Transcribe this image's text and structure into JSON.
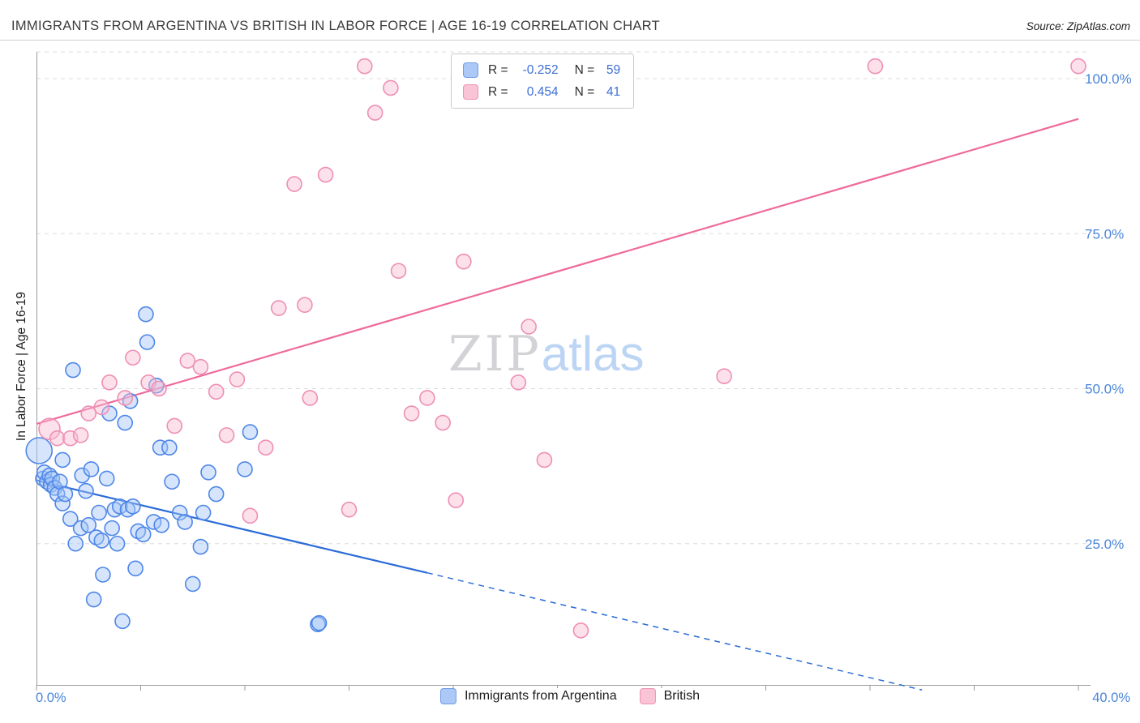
{
  "header": {
    "title": "IMMIGRANTS FROM ARGENTINA VS BRITISH IN LABOR FORCE | AGE 16-19 CORRELATION CHART",
    "source": "Source: ZipAtlas.com"
  },
  "watermark": {
    "zip": "ZIP",
    "atlas": "atlas"
  },
  "legend_box": {
    "series": [
      {
        "r_label": "R =",
        "r_value": "-0.252",
        "n_label": "N =",
        "n_value": "59"
      },
      {
        "r_label": "R =",
        "r_value": "0.454",
        "n_label": "N =",
        "n_value": "41"
      }
    ]
  },
  "axes": {
    "y_label": "In Labor Force | Age 16-19",
    "x_min_label": "0.0%",
    "x_max_label": "40.0%",
    "y_ticks": [
      "100.0%",
      "75.0%",
      "50.0%",
      "25.0%"
    ]
  },
  "bottom_legend": [
    {
      "label": "Immigrants from Argentina"
    },
    {
      "label": "British"
    }
  ],
  "colors": {
    "axis_blue": "#4a86d8",
    "grid": "#dcdcdc",
    "axis_line": "#9b9b9b",
    "argentina_fill": "#a4c6f7",
    "argentina_stroke": "#4e86e8",
    "british_fill": "#f9bcd2",
    "british_stroke": "#ee8fb4",
    "argentina_trend": "#2a6bd8",
    "british_trend": "#ef6a9b"
  },
  "chart_data": {
    "type": "scatter",
    "title": "IMMIGRANTS FROM ARGENTINA VS BRITISH IN LABOR FORCE | AGE 16-19 CORRELATION CHART",
    "xlabel": "",
    "ylabel": "In Labor Force | Age 16-19",
    "x_range": [
      0,
      40
    ],
    "y_ticks_pct": [
      100,
      75,
      50,
      25
    ],
    "grid": true,
    "legend_position": "bottom",
    "series": [
      {
        "name": "Immigrants from Argentina",
        "R": -0.252,
        "N": 59,
        "points": [
          [
            0.1,
            40,
            16
          ],
          [
            0.25,
            35.5
          ],
          [
            0.3,
            36.5
          ],
          [
            0.4,
            35
          ],
          [
            0.5,
            36
          ],
          [
            0.55,
            34.5
          ],
          [
            0.6,
            35.5
          ],
          [
            0.7,
            34
          ],
          [
            0.8,
            33
          ],
          [
            0.9,
            35
          ],
          [
            1.0,
            38.5
          ],
          [
            1.0,
            31.5
          ],
          [
            1.1,
            33
          ],
          [
            1.3,
            29
          ],
          [
            1.4,
            53
          ],
          [
            1.5,
            25
          ],
          [
            1.7,
            27.5
          ],
          [
            1.75,
            36
          ],
          [
            1.9,
            33.5
          ],
          [
            2.0,
            28
          ],
          [
            2.1,
            37
          ],
          [
            2.2,
            16
          ],
          [
            2.3,
            26
          ],
          [
            2.4,
            30
          ],
          [
            2.5,
            25.5
          ],
          [
            2.55,
            20
          ],
          [
            2.7,
            35.5
          ],
          [
            2.8,
            46
          ],
          [
            2.9,
            27.5
          ],
          [
            3.0,
            30.5
          ],
          [
            3.1,
            25
          ],
          [
            3.2,
            31
          ],
          [
            3.3,
            12.5
          ],
          [
            3.4,
            44.5
          ],
          [
            3.5,
            30.5
          ],
          [
            3.6,
            48
          ],
          [
            3.7,
            31
          ],
          [
            3.8,
            21
          ],
          [
            3.9,
            27
          ],
          [
            4.1,
            26.5
          ],
          [
            4.2,
            62
          ],
          [
            4.25,
            57.5
          ],
          [
            4.5,
            28.5
          ],
          [
            4.6,
            50.5
          ],
          [
            4.8,
            28
          ],
          [
            4.75,
            40.5
          ],
          [
            5.1,
            40.5
          ],
          [
            5.2,
            35
          ],
          [
            5.5,
            30
          ],
          [
            5.7,
            28.5
          ],
          [
            6.0,
            18.5
          ],
          [
            6.3,
            24.5
          ],
          [
            6.4,
            30
          ],
          [
            6.6,
            36.5
          ],
          [
            6.9,
            33
          ],
          [
            8.0,
            37
          ],
          [
            8.2,
            43
          ],
          [
            10.8,
            12
          ],
          [
            10.85,
            12.2
          ]
        ]
      },
      {
        "name": "British",
        "R": 0.454,
        "N": 41,
        "points": [
          [
            0.5,
            43.5,
            13
          ],
          [
            0.8,
            42
          ],
          [
            1.3,
            42
          ],
          [
            1.7,
            42.5
          ],
          [
            2.0,
            46
          ],
          [
            2.5,
            47
          ],
          [
            2.8,
            51
          ],
          [
            3.4,
            48.5
          ],
          [
            3.7,
            55
          ],
          [
            4.3,
            51
          ],
          [
            4.7,
            50
          ],
          [
            5.3,
            44
          ],
          [
            5.8,
            54.5
          ],
          [
            6.3,
            53.5
          ],
          [
            6.9,
            49.5
          ],
          [
            7.3,
            42.5
          ],
          [
            7.7,
            51.5
          ],
          [
            8.2,
            29.5
          ],
          [
            8.8,
            40.5
          ],
          [
            9.3,
            63
          ],
          [
            9.9,
            83
          ],
          [
            10.3,
            63.5
          ],
          [
            10.5,
            48.5
          ],
          [
            11.1,
            84.5
          ],
          [
            12.0,
            30.5
          ],
          [
            12.6,
            102
          ],
          [
            13.0,
            94.5
          ],
          [
            13.6,
            98.5
          ],
          [
            13.9,
            69
          ],
          [
            14.4,
            46
          ],
          [
            15.0,
            48.5
          ],
          [
            15.6,
            44.5
          ],
          [
            16.1,
            32
          ],
          [
            16.4,
            70.5
          ],
          [
            18.5,
            51
          ],
          [
            18.9,
            60
          ],
          [
            19.5,
            38.5
          ],
          [
            20.9,
            11
          ],
          [
            26.4,
            52
          ],
          [
            32.2,
            102
          ],
          [
            40.0,
            102
          ]
        ]
      }
    ],
    "trend_lines": [
      {
        "series": "Immigrants from Argentina",
        "color": "#2a6bd8",
        "solid": [
          [
            0,
            35.2
          ],
          [
            15,
            20.3
          ]
        ],
        "dashed": [
          [
            15,
            20.3
          ],
          [
            34,
            1.4
          ]
        ]
      },
      {
        "series": "British",
        "color": "#ef6a9b",
        "solid": [
          [
            0,
            44.3
          ],
          [
            40,
            93.5
          ]
        ]
      }
    ]
  }
}
